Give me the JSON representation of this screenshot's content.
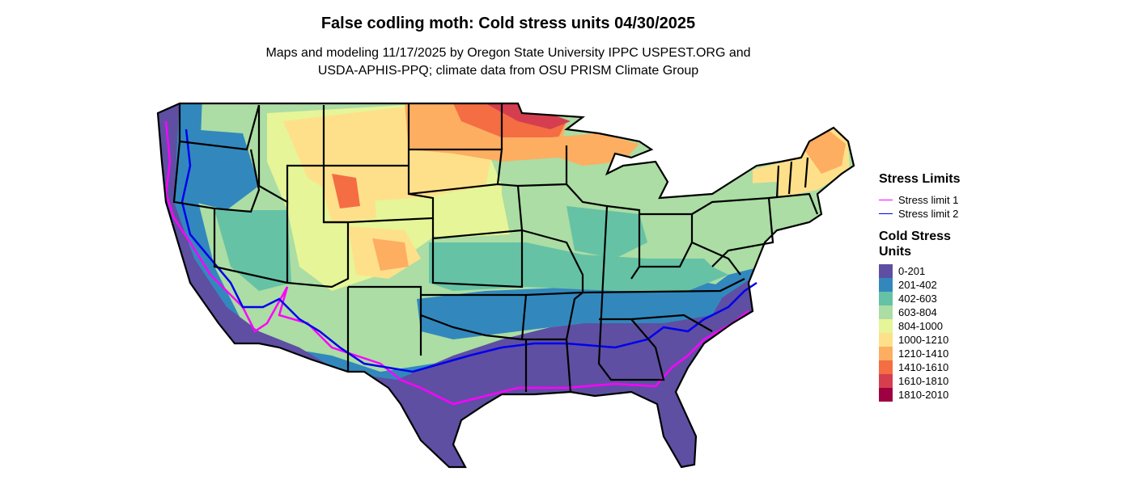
{
  "title": "False codling moth: Cold stress units 04/30/2025",
  "subtitle_line1": "Maps and modeling 11/17/2025 by Oregon State University IPPC USPEST.ORG and",
  "subtitle_line2": "USDA-APHIS-PPQ; climate data from OSU PRISM Climate Group",
  "legend_limits": {
    "title": "Stress Limits",
    "items": [
      {
        "label": "Stress limit 1",
        "color": "#ff00ff"
      },
      {
        "label": "Stress limit 2",
        "color": "#0000ee"
      }
    ]
  },
  "legend_units": {
    "title": "Cold Stress Units",
    "items": [
      {
        "label": "0-201",
        "color": "#5e4fa2"
      },
      {
        "label": "201-402",
        "color": "#3288bd"
      },
      {
        "label": "402-603",
        "color": "#66c2a5"
      },
      {
        "label": "603-804",
        "color": "#abdda4"
      },
      {
        "label": "804-1000",
        "color": "#e6f598"
      },
      {
        "label": "1000-1210",
        "color": "#fee08b"
      },
      {
        "label": "1210-1410",
        "color": "#fdae61"
      },
      {
        "label": "1410-1610",
        "color": "#f46d43"
      },
      {
        "label": "1610-1810",
        "color": "#d53e4f"
      },
      {
        "label": "1810-2010",
        "color": "#9e0142"
      }
    ]
  }
}
